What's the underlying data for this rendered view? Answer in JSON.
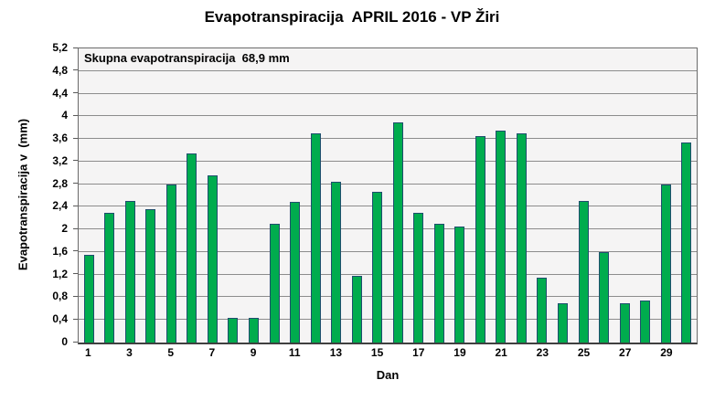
{
  "chart_data": {
    "type": "bar",
    "title": "Evapotranspiracija  APRIL 2016 - VP Žiri",
    "annotation": "Skupna evapotranspiracija  68,9 mm",
    "xlabel": "Dan",
    "ylabel": "Evapotranspiracija v  (mm)",
    "categories": [
      1,
      2,
      3,
      4,
      5,
      6,
      7,
      8,
      9,
      10,
      11,
      12,
      13,
      14,
      15,
      16,
      17,
      18,
      19,
      20,
      21,
      22,
      23,
      24,
      25,
      26,
      27,
      28,
      29,
      30
    ],
    "values": [
      1.55,
      2.3,
      2.5,
      2.35,
      2.8,
      3.35,
      2.95,
      0.43,
      0.43,
      2.1,
      2.48,
      3.7,
      2.85,
      1.18,
      2.67,
      3.9,
      2.3,
      2.1,
      2.05,
      3.65,
      3.75,
      3.7,
      1.15,
      0.7,
      2.5,
      1.6,
      0.7,
      0.75,
      2.8,
      3.53
    ],
    "total_mm": "68,9",
    "ylim": [
      0,
      5.2
    ],
    "ytick_step": 0.4,
    "ytick_labels": [
      "0",
      "0,4",
      "0,8",
      "1,2",
      "1,6",
      "2",
      "2,4",
      "2,8",
      "3,2",
      "3,6",
      "4",
      "4,4",
      "4,8",
      "5,2"
    ],
    "xtick_labels": [
      "1",
      "3",
      "5",
      "7",
      "9",
      "11",
      "13",
      "15",
      "17",
      "19",
      "21",
      "23",
      "25",
      "27",
      "29"
    ],
    "grid": "horizontal",
    "legend_position": "none",
    "bar_color": "#00ac4e",
    "bar_border_color": "#1f4e6e",
    "plot_background": "#f5f4f4",
    "grid_color": "#8c8c8c"
  }
}
